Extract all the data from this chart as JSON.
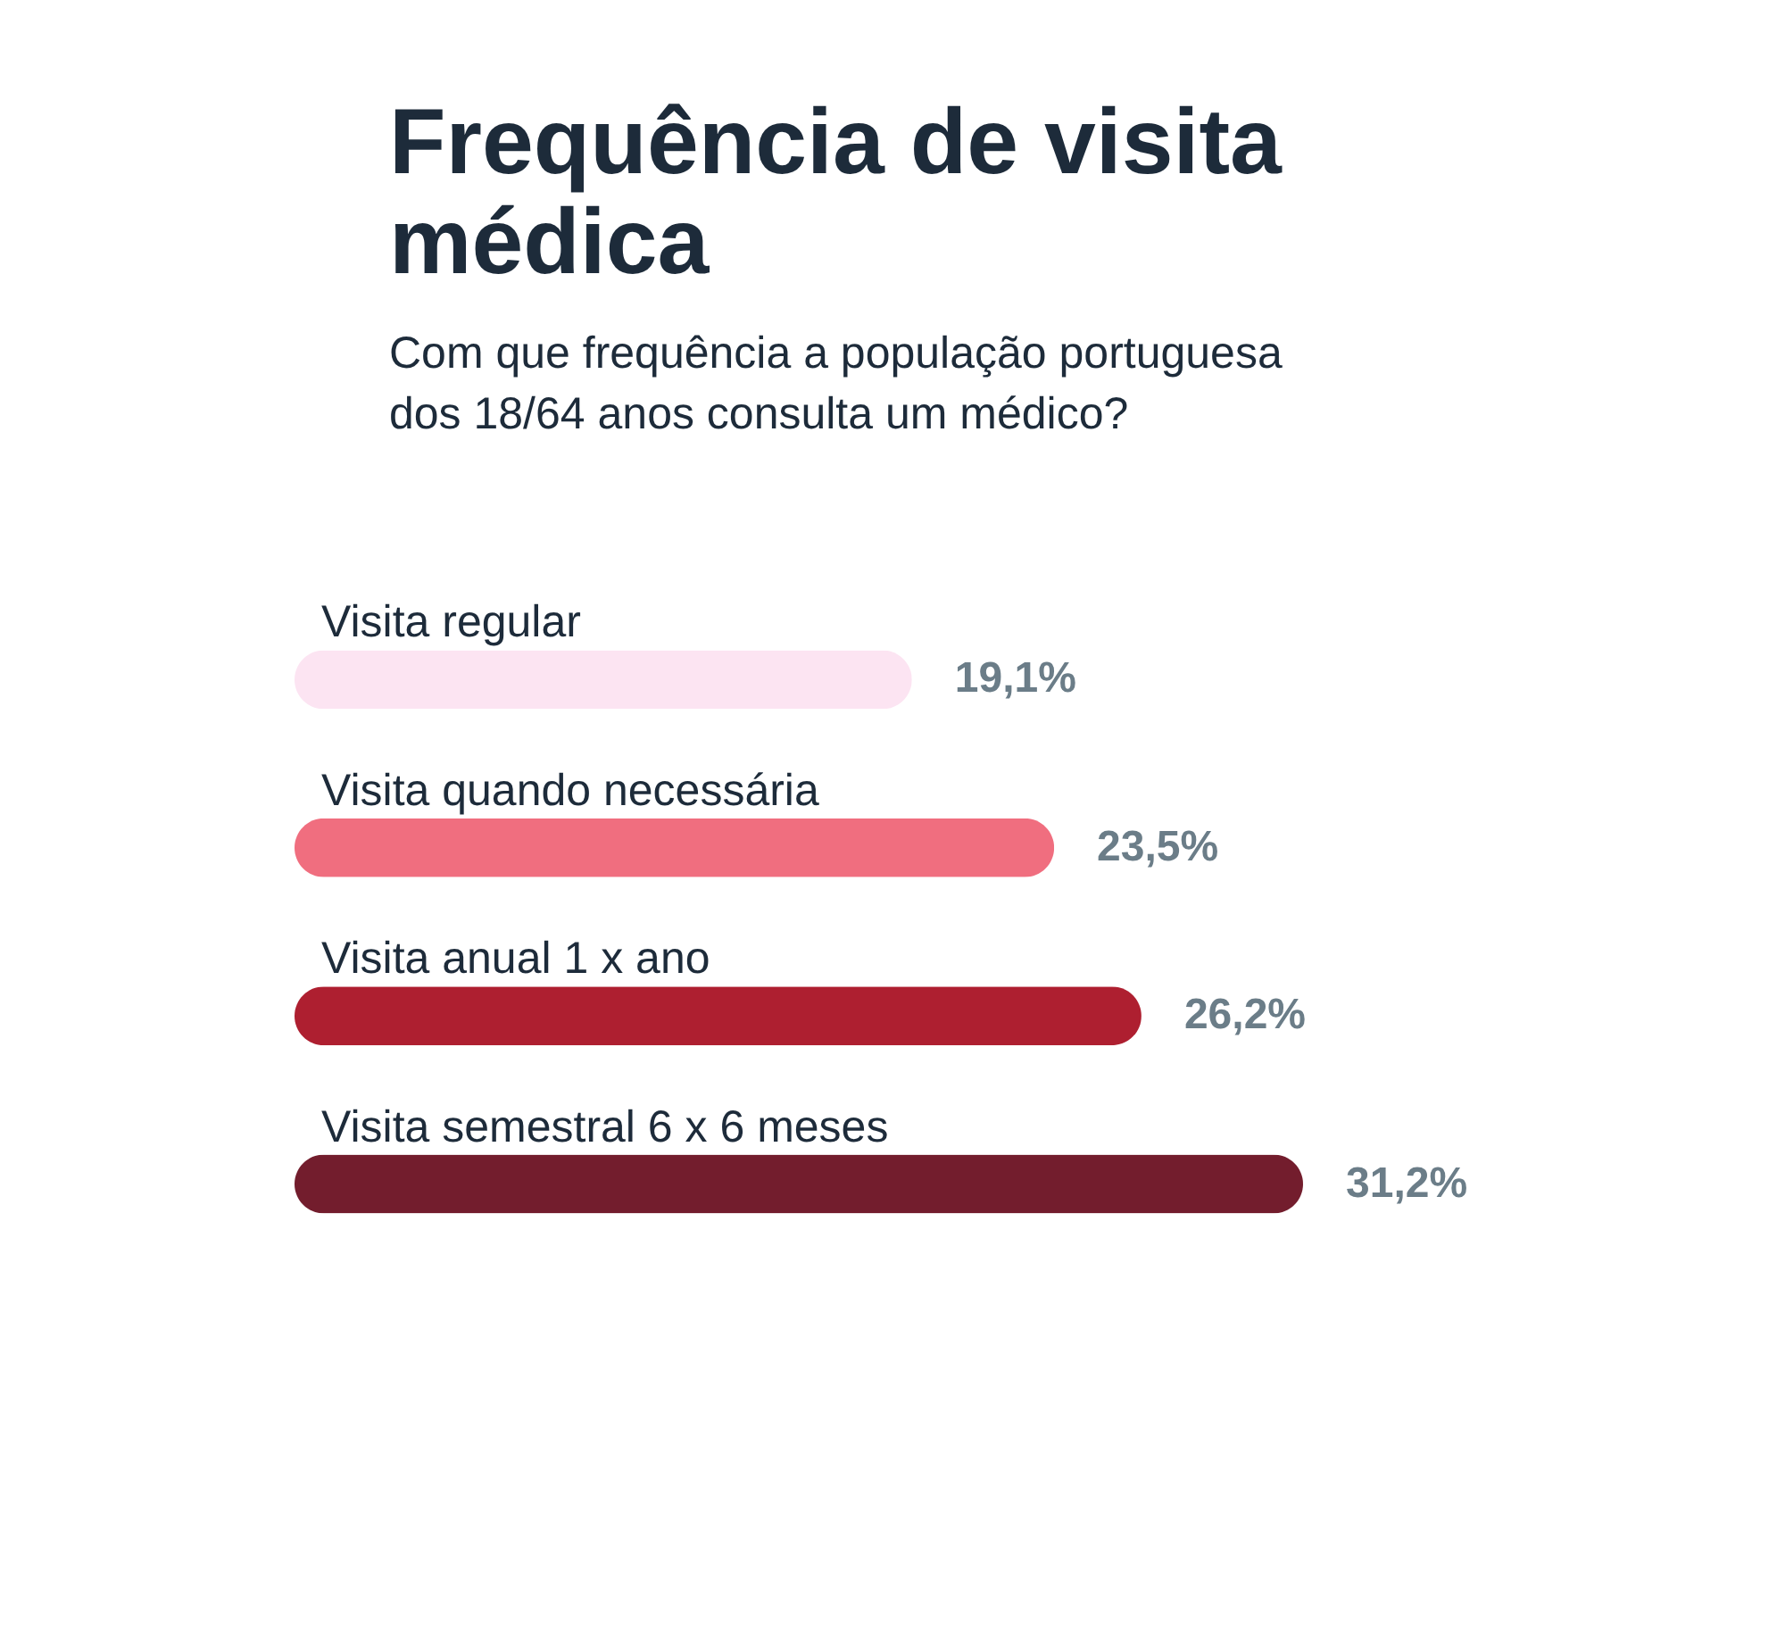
{
  "chart_data": {
    "type": "bar",
    "orientation": "horizontal",
    "title": "Frequência de visita médica",
    "subtitle": "Com que frequência a população portuguesa dos 18/64 anos consulta um médico?",
    "categories": [
      "Visita regular",
      "Visita quando necessária",
      "Visita anual 1 x ano",
      "Visita semestral 6 x 6 meses"
    ],
    "values": [
      19.1,
      23.5,
      26.2,
      31.2
    ],
    "colors": [
      "#fce4f2",
      "#f06e7f",
      "#ae1f30",
      "#731d2d"
    ],
    "value_labels": [
      "19,1%",
      "23,5%",
      "26,2%",
      "31,2%"
    ]
  }
}
